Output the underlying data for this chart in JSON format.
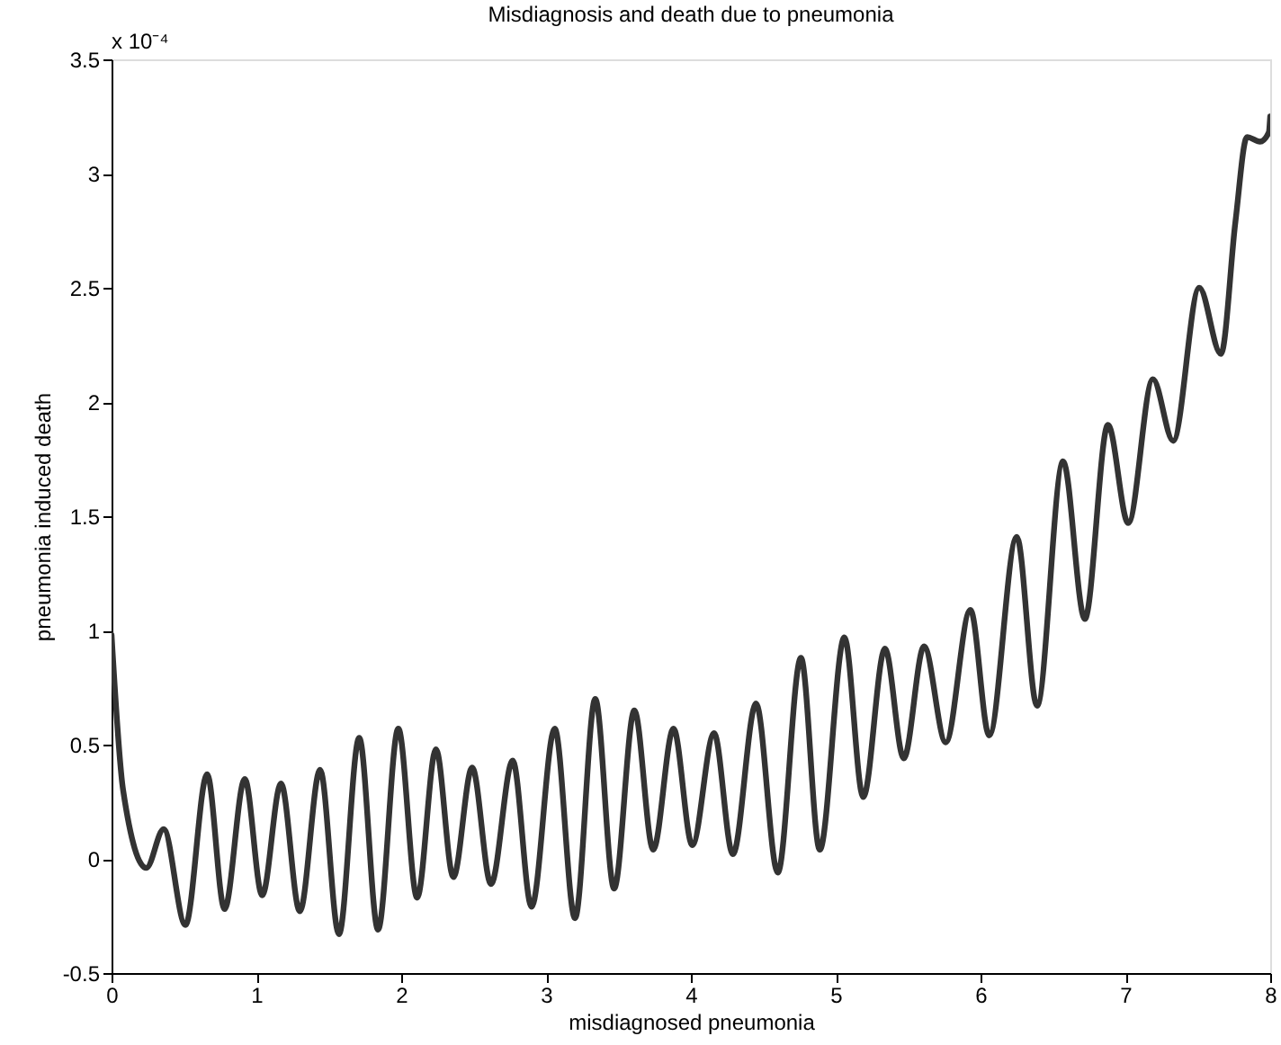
{
  "chart_data": {
    "type": "line",
    "title": "Misdiagnosis and death due to pneumonia",
    "xlabel": "misdiagnosed pneumonia",
    "ylabel": "pneumonia induced death",
    "annotations": [
      "x 10⁻⁴"
    ],
    "x": [
      0,
      0.08,
      0.24,
      0.36,
      0.51,
      0.66,
      0.78,
      0.92,
      1.04,
      1.17,
      1.3,
      1.44,
      1.57,
      1.71,
      1.84,
      1.98,
      2.11,
      2.24,
      2.36,
      2.49,
      2.62,
      2.77,
      2.9,
      3.06,
      3.2,
      3.34,
      3.47,
      3.61,
      3.74,
      3.88,
      4.01,
      4.16,
      4.29,
      4.45,
      4.6,
      4.76,
      4.89,
      5.06,
      5.19,
      5.34,
      5.47,
      5.61,
      5.76,
      5.93,
      6.06,
      6.25,
      6.39,
      6.57,
      6.72,
      6.88,
      7.02,
      7.19,
      7.33,
      7.51,
      7.66,
      7.76,
      7.84,
      7.93,
      7.99,
      8.0
    ],
    "series": [
      {
        "color": "#333333",
        "values": [
          0.98,
          0.3,
          -0.04,
          0.13,
          -0.29,
          0.37,
          -0.22,
          0.35,
          -0.16,
          0.33,
          -0.23,
          0.39,
          -0.33,
          0.53,
          -0.31,
          0.57,
          -0.17,
          0.48,
          -0.08,
          0.4,
          -0.11,
          0.43,
          -0.21,
          0.57,
          -0.26,
          0.7,
          -0.13,
          0.65,
          0.04,
          0.57,
          0.06,
          0.55,
          0.02,
          0.68,
          -0.06,
          0.88,
          0.04,
          0.97,
          0.27,
          0.92,
          0.44,
          0.93,
          0.51,
          1.09,
          0.54,
          1.41,
          0.67,
          1.74,
          1.05,
          1.9,
          1.47,
          2.1,
          1.83,
          2.5,
          2.21,
          2.79,
          3.16,
          3.14,
          3.18,
          3.25
        ]
      }
    ],
    "xlim": [
      0,
      8
    ],
    "ylim": [
      -0.5,
      3.5
    ],
    "xticks": [
      0,
      1,
      2,
      3,
      4,
      5,
      6,
      7,
      8
    ],
    "yticks": [
      -0.5,
      0,
      0.5,
      1,
      1.5,
      2,
      2.5,
      3,
      3.5
    ],
    "grid": false,
    "marker": "none",
    "line_style": "solid"
  }
}
